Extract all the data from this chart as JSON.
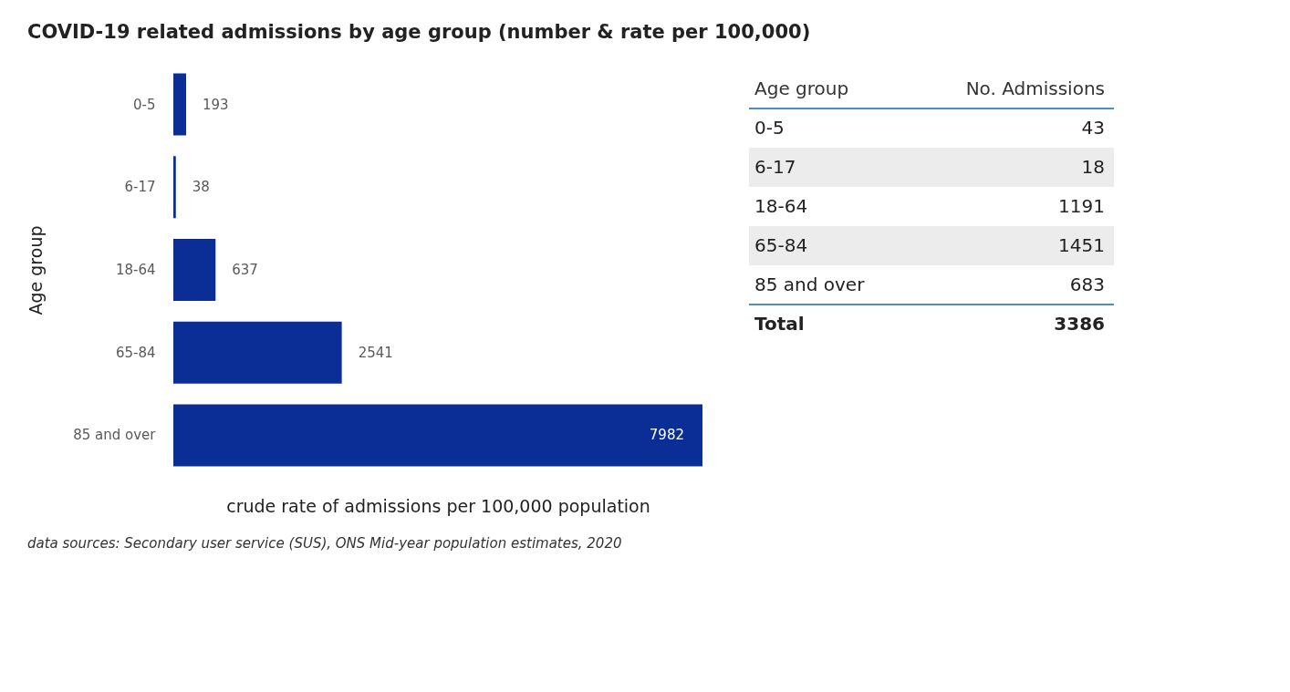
{
  "chart_data": [
    {
      "type": "bar",
      "orientation": "horizontal",
      "title": "COVID-19 related admissions by age group (number & rate per 100,000)",
      "ylabel": "Age group",
      "xlabel": "crude rate of admissions per 100,000 population",
      "categories": [
        "0-5",
        "6-17",
        "18-64",
        "65-84",
        "85 and over"
      ],
      "values": [
        193,
        38,
        637,
        2541,
        7982
      ],
      "color": "#0a2e96",
      "data_labels": true,
      "annotations": [
        "data sources: Secondary user service (SUS), ONS Mid-year population estimates, 2020"
      ]
    },
    {
      "type": "other",
      "xlabel": "Age group",
      "ylabel": "No. Admissions",
      "categories": [
        "0-5",
        "6-17",
        "18-64",
        "65-84",
        "85 and over",
        "Total"
      ],
      "values": [
        43,
        18,
        1191,
        1451,
        683,
        3386
      ],
      "data_labels": true
    }
  ]
}
